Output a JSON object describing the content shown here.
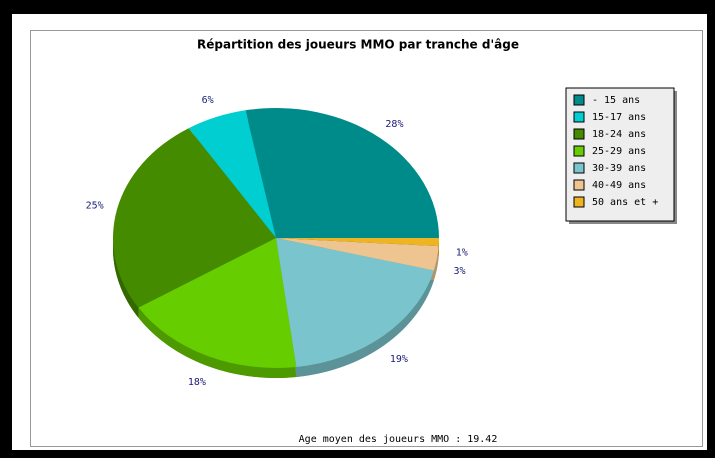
{
  "chart_data": {
    "type": "pie",
    "title": "Répartition des joueurs MMO par tranche d'âge",
    "footnote": "Age moyen des joueurs MMO : 19.42",
    "categories": [
      "- 15 ans",
      "15-17 ans",
      "18-24 ans",
      "25-29 ans",
      "30-39 ans",
      "40-49 ans",
      "50 ans et +"
    ],
    "values": [
      28,
      6,
      25,
      18,
      19,
      3,
      1
    ],
    "value_labels": [
      "28%",
      "6%",
      "25%",
      "18%",
      "19%",
      "3%",
      "1%"
    ],
    "colors": [
      "#008b8b",
      "#00ced1",
      "#458b00",
      "#66cd00",
      "#7ac5cd",
      "#eec591",
      "#eeb422"
    ],
    "legend": "upper right"
  }
}
